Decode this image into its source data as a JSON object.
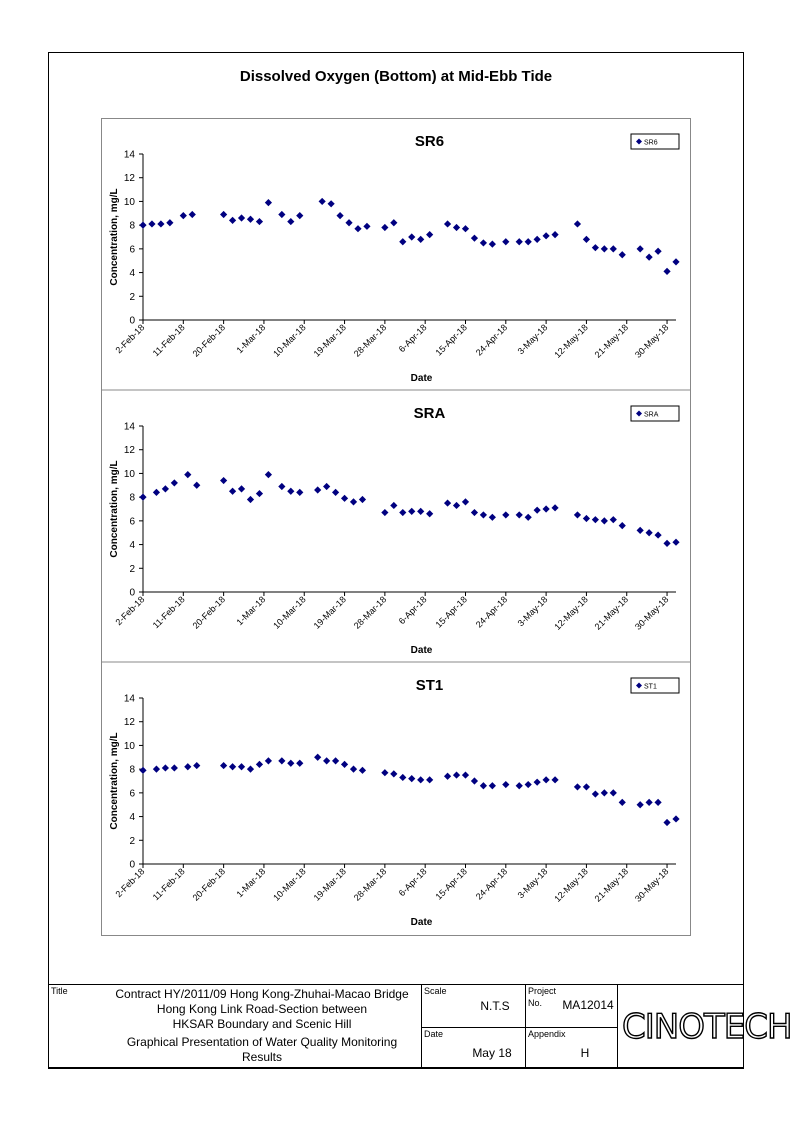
{
  "page": {
    "title": "Dissolved Oxygen (Bottom) at Mid-Ebb Tide"
  },
  "title_block": {
    "title_label": "Title",
    "title_lines": [
      "Contract HY/2011/09 Hong Kong-Zhuhai-Macao Bridge",
      "Hong Kong Link Road-Section between",
      "HKSAR Boundary and Scenic Hill"
    ],
    "subtitle_lines": [
      "Graphical Presentation of Water Quality Monitoring",
      "Results"
    ],
    "scale_label": "Scale",
    "scale_value": "N.T.S",
    "project_label": "Project",
    "project_no_label": "No.",
    "project_value": "MA12014",
    "date_label": "Date",
    "date_value": "May 18",
    "appendix_label": "Appendix",
    "appendix_value": "H",
    "logo_text": "CINOTECH"
  },
  "chart_data": [
    {
      "type": "scatter",
      "title": "SR6",
      "xlabel": "Date",
      "ylabel": "Concentration, mg/L",
      "ylim": [
        0,
        14
      ],
      "yticks": [
        0,
        2,
        4,
        6,
        8,
        10,
        12,
        14
      ],
      "xticks": [
        "2-Feb-18",
        "11-Feb-18",
        "20-Feb-18",
        "1-Mar-18",
        "10-Mar-18",
        "19-Mar-18",
        "28-Mar-18",
        "6-Apr-18",
        "15-Apr-18",
        "24-Apr-18",
        "3-May-18",
        "12-May-18",
        "21-May-18",
        "30-May-18"
      ],
      "legend": "top-right",
      "marker_color": "#000080",
      "series": [
        {
          "name": "SR6",
          "points": [
            [
              "2-Feb-18",
              8.0
            ],
            [
              "4-Feb-18",
              8.1
            ],
            [
              "6-Feb-18",
              8.1
            ],
            [
              "8-Feb-18",
              8.2
            ],
            [
              "11-Feb-18",
              8.8
            ],
            [
              "13-Feb-18",
              8.9
            ],
            [
              "20-Feb-18",
              8.9
            ],
            [
              "22-Feb-18",
              8.4
            ],
            [
              "24-Feb-18",
              8.6
            ],
            [
              "26-Feb-18",
              8.5
            ],
            [
              "28-Feb-18",
              8.3
            ],
            [
              "2-Mar-18",
              9.9
            ],
            [
              "5-Mar-18",
              8.9
            ],
            [
              "7-Mar-18",
              8.3
            ],
            [
              "9-Mar-18",
              8.8
            ],
            [
              "14-Mar-18",
              10.0
            ],
            [
              "16-Mar-18",
              9.8
            ],
            [
              "18-Mar-18",
              8.8
            ],
            [
              "20-Mar-18",
              8.2
            ],
            [
              "22-Mar-18",
              7.7
            ],
            [
              "24-Mar-18",
              7.9
            ],
            [
              "28-Mar-18",
              7.8
            ],
            [
              "30-Mar-18",
              8.2
            ],
            [
              "1-Apr-18",
              6.6
            ],
            [
              "3-Apr-18",
              7.0
            ],
            [
              "5-Apr-18",
              6.8
            ],
            [
              "7-Apr-18",
              7.2
            ],
            [
              "11-Apr-18",
              8.1
            ],
            [
              "13-Apr-18",
              7.8
            ],
            [
              "15-Apr-18",
              7.7
            ],
            [
              "17-Apr-18",
              6.9
            ],
            [
              "19-Apr-18",
              6.5
            ],
            [
              "21-Apr-18",
              6.4
            ],
            [
              "24-Apr-18",
              6.6
            ],
            [
              "27-Apr-18",
              6.6
            ],
            [
              "29-Apr-18",
              6.6
            ],
            [
              "1-May-18",
              6.8
            ],
            [
              "3-May-18",
              7.1
            ],
            [
              "5-May-18",
              7.2
            ],
            [
              "10-May-18",
              8.1
            ],
            [
              "12-May-18",
              6.8
            ],
            [
              "14-May-18",
              6.1
            ],
            [
              "16-May-18",
              6.0
            ],
            [
              "18-May-18",
              6.0
            ],
            [
              "20-May-18",
              5.5
            ],
            [
              "24-May-18",
              6.0
            ],
            [
              "26-May-18",
              5.3
            ],
            [
              "28-May-18",
              5.8
            ],
            [
              "30-May-18",
              4.1
            ],
            [
              "1-Jun-18",
              4.9
            ]
          ]
        }
      ]
    },
    {
      "type": "scatter",
      "title": "SRA",
      "xlabel": "Date",
      "ylabel": "Concentration, mg/L",
      "ylim": [
        0,
        14
      ],
      "yticks": [
        0,
        2,
        4,
        6,
        8,
        10,
        12,
        14
      ],
      "xticks": [
        "2-Feb-18",
        "11-Feb-18",
        "20-Feb-18",
        "1-Mar-18",
        "10-Mar-18",
        "19-Mar-18",
        "28-Mar-18",
        "6-Apr-18",
        "15-Apr-18",
        "24-Apr-18",
        "3-May-18",
        "12-May-18",
        "21-May-18",
        "30-May-18"
      ],
      "legend": "top-right",
      "marker_color": "#000080",
      "series": [
        {
          "name": "SRA",
          "points": [
            [
              "2-Feb-18",
              8.0
            ],
            [
              "5-Feb-18",
              8.4
            ],
            [
              "7-Feb-18",
              8.7
            ],
            [
              "9-Feb-18",
              9.2
            ],
            [
              "12-Feb-18",
              9.9
            ],
            [
              "14-Feb-18",
              9.0
            ],
            [
              "20-Feb-18",
              9.4
            ],
            [
              "22-Feb-18",
              8.5
            ],
            [
              "24-Feb-18",
              8.7
            ],
            [
              "26-Feb-18",
              7.8
            ],
            [
              "28-Feb-18",
              8.3
            ],
            [
              "2-Mar-18",
              9.9
            ],
            [
              "5-Mar-18",
              8.9
            ],
            [
              "7-Mar-18",
              8.5
            ],
            [
              "9-Mar-18",
              8.4
            ],
            [
              "13-Mar-18",
              8.6
            ],
            [
              "15-Mar-18",
              8.9
            ],
            [
              "17-Mar-18",
              8.4
            ],
            [
              "19-Mar-18",
              7.9
            ],
            [
              "21-Mar-18",
              7.6
            ],
            [
              "23-Mar-18",
              7.8
            ],
            [
              "28-Mar-18",
              6.7
            ],
            [
              "30-Mar-18",
              7.3
            ],
            [
              "1-Apr-18",
              6.7
            ],
            [
              "3-Apr-18",
              6.8
            ],
            [
              "5-Apr-18",
              6.8
            ],
            [
              "7-Apr-18",
              6.6
            ],
            [
              "11-Apr-18",
              7.5
            ],
            [
              "13-Apr-18",
              7.3
            ],
            [
              "15-Apr-18",
              7.6
            ],
            [
              "17-Apr-18",
              6.7
            ],
            [
              "19-Apr-18",
              6.5
            ],
            [
              "21-Apr-18",
              6.3
            ],
            [
              "24-Apr-18",
              6.5
            ],
            [
              "27-Apr-18",
              6.5
            ],
            [
              "29-Apr-18",
              6.3
            ],
            [
              "1-May-18",
              6.9
            ],
            [
              "3-May-18",
              7.0
            ],
            [
              "5-May-18",
              7.1
            ],
            [
              "10-May-18",
              6.5
            ],
            [
              "12-May-18",
              6.2
            ],
            [
              "14-May-18",
              6.1
            ],
            [
              "16-May-18",
              6.0
            ],
            [
              "18-May-18",
              6.1
            ],
            [
              "20-May-18",
              5.6
            ],
            [
              "24-May-18",
              5.2
            ],
            [
              "26-May-18",
              5.0
            ],
            [
              "28-May-18",
              4.8
            ],
            [
              "30-May-18",
              4.1
            ],
            [
              "1-Jun-18",
              4.2
            ]
          ]
        }
      ]
    },
    {
      "type": "scatter",
      "title": "ST1",
      "xlabel": "Date",
      "ylabel": "Concentration, mg/L",
      "ylim": [
        0,
        14
      ],
      "yticks": [
        0,
        2,
        4,
        6,
        8,
        10,
        12,
        14
      ],
      "xticks": [
        "2-Feb-18",
        "11-Feb-18",
        "20-Feb-18",
        "1-Mar-18",
        "10-Mar-18",
        "19-Mar-18",
        "28-Mar-18",
        "6-Apr-18",
        "15-Apr-18",
        "24-Apr-18",
        "3-May-18",
        "12-May-18",
        "21-May-18",
        "30-May-18"
      ],
      "legend": "top-right",
      "marker_color": "#000080",
      "series": [
        {
          "name": "ST1",
          "points": [
            [
              "2-Feb-18",
              7.9
            ],
            [
              "5-Feb-18",
              8.0
            ],
            [
              "7-Feb-18",
              8.1
            ],
            [
              "9-Feb-18",
              8.1
            ],
            [
              "12-Feb-18",
              8.2
            ],
            [
              "14-Feb-18",
              8.3
            ],
            [
              "20-Feb-18",
              8.3
            ],
            [
              "22-Feb-18",
              8.2
            ],
            [
              "24-Feb-18",
              8.2
            ],
            [
              "26-Feb-18",
              8.0
            ],
            [
              "28-Feb-18",
              8.4
            ],
            [
              "2-Mar-18",
              8.7
            ],
            [
              "5-Mar-18",
              8.7
            ],
            [
              "7-Mar-18",
              8.5
            ],
            [
              "9-Mar-18",
              8.5
            ],
            [
              "13-Mar-18",
              9.0
            ],
            [
              "15-Mar-18",
              8.7
            ],
            [
              "17-Mar-18",
              8.7
            ],
            [
              "19-Mar-18",
              8.4
            ],
            [
              "21-Mar-18",
              8.0
            ],
            [
              "23-Mar-18",
              7.9
            ],
            [
              "28-Mar-18",
              7.7
            ],
            [
              "30-Mar-18",
              7.6
            ],
            [
              "1-Apr-18",
              7.3
            ],
            [
              "3-Apr-18",
              7.2
            ],
            [
              "5-Apr-18",
              7.1
            ],
            [
              "7-Apr-18",
              7.1
            ],
            [
              "11-Apr-18",
              7.4
            ],
            [
              "13-Apr-18",
              7.5
            ],
            [
              "15-Apr-18",
              7.5
            ],
            [
              "17-Apr-18",
              7.0
            ],
            [
              "19-Apr-18",
              6.6
            ],
            [
              "21-Apr-18",
              6.6
            ],
            [
              "24-Apr-18",
              6.7
            ],
            [
              "27-Apr-18",
              6.6
            ],
            [
              "29-Apr-18",
              6.7
            ],
            [
              "1-May-18",
              6.9
            ],
            [
              "3-May-18",
              7.1
            ],
            [
              "5-May-18",
              7.1
            ],
            [
              "10-May-18",
              6.5
            ],
            [
              "12-May-18",
              6.5
            ],
            [
              "14-May-18",
              5.9
            ],
            [
              "16-May-18",
              6.0
            ],
            [
              "18-May-18",
              6.0
            ],
            [
              "20-May-18",
              5.2
            ],
            [
              "24-May-18",
              5.0
            ],
            [
              "26-May-18",
              5.2
            ],
            [
              "28-May-18",
              5.2
            ],
            [
              "30-May-18",
              3.5
            ],
            [
              "1-Jun-18",
              3.8
            ]
          ]
        }
      ]
    }
  ]
}
